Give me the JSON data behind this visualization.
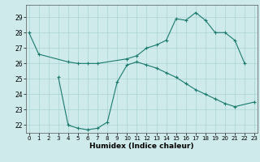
{
  "xlabel": "Humidex (Indice chaleur)",
  "x": [
    0,
    1,
    2,
    3,
    4,
    5,
    6,
    7,
    8,
    9,
    10,
    11,
    12,
    13,
    14,
    15,
    16,
    17,
    18,
    19,
    20,
    21,
    22,
    23
  ],
  "line1_y": [
    28.0,
    26.6,
    null,
    null,
    26.1,
    26.0,
    26.0,
    26.0,
    null,
    null,
    26.3,
    26.5,
    27.0,
    27.2,
    27.5,
    28.9,
    28.8,
    29.3,
    28.8,
    28.0,
    28.0,
    27.5,
    26.0,
    null
  ],
  "line2_y": [
    null,
    null,
    null,
    25.1,
    22.0,
    21.8,
    21.7,
    21.8,
    22.2,
    24.8,
    25.9,
    26.1,
    25.9,
    25.7,
    25.4,
    25.1,
    24.7,
    24.3,
    24.0,
    23.7,
    23.4,
    23.2,
    null,
    23.5
  ],
  "yticks": [
    22,
    23,
    24,
    25,
    26,
    27,
    28,
    29
  ],
  "xticks": [
    0,
    1,
    2,
    3,
    4,
    5,
    6,
    7,
    8,
    9,
    10,
    11,
    12,
    13,
    14,
    15,
    16,
    17,
    18,
    19,
    20,
    21,
    22,
    23
  ],
  "ylim": [
    21.5,
    29.8
  ],
  "xlim": [
    -0.3,
    23.3
  ],
  "line_color": "#1a7a6e",
  "bg_color": "#ceeaea",
  "grid_color": "#aad4d4",
  "figsize": [
    3.2,
    2.0
  ],
  "dpi": 100
}
